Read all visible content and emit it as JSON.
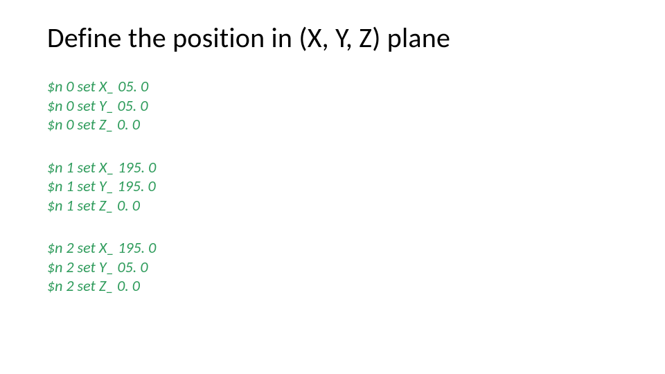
{
  "title": "Define the position in (X, Y, Z) plane",
  "code_color": "#2e9b5b",
  "title_color": "#000000",
  "background_color": "#ffffff",
  "title_fontsize": 40,
  "code_fontsize": 22,
  "blocks": [
    {
      "lines": [
        "$n 0 set X_ 05. 0",
        "$n 0 set Y_ 05. 0",
        "$n 0 set Z_ 0. 0"
      ]
    },
    {
      "lines": [
        "$n 1 set X_ 195. 0",
        "$n 1 set Y_ 195. 0",
        "$n 1 set Z_ 0. 0"
      ]
    },
    {
      "lines": [
        "$n 2 set X_ 195. 0",
        "$n 2 set Y_ 05. 0",
        "$n 2 set Z_ 0. 0"
      ]
    }
  ]
}
